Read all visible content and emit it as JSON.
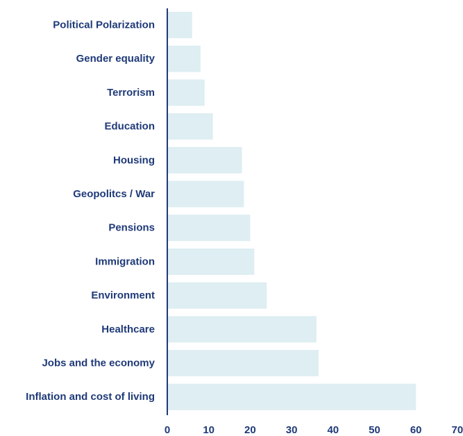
{
  "colors": {
    "bar": "#deeef2",
    "axis": "#1f3a78",
    "text": "#1f3a78"
  },
  "chart_data": {
    "type": "bar",
    "orientation": "horizontal",
    "title": "",
    "xlabel": "",
    "ylabel": "",
    "xlim": [
      0,
      70
    ],
    "grid": false,
    "legend": "none",
    "categories": [
      "Political Polarization",
      "Gender equality",
      "Terrorism",
      "Education",
      "Housing",
      "Geopolitcs / War",
      "Pensions",
      "Immigration",
      "Environment",
      "Healthcare",
      "Jobs and the economy",
      "Inflation and cost of living"
    ],
    "values": [
      6,
      8,
      9,
      11,
      18,
      18.5,
      20,
      21,
      24,
      36,
      36.5,
      60
    ],
    "xticks": [
      "0",
      "10",
      "20",
      "30",
      "40",
      "50",
      "60",
      "70"
    ]
  }
}
